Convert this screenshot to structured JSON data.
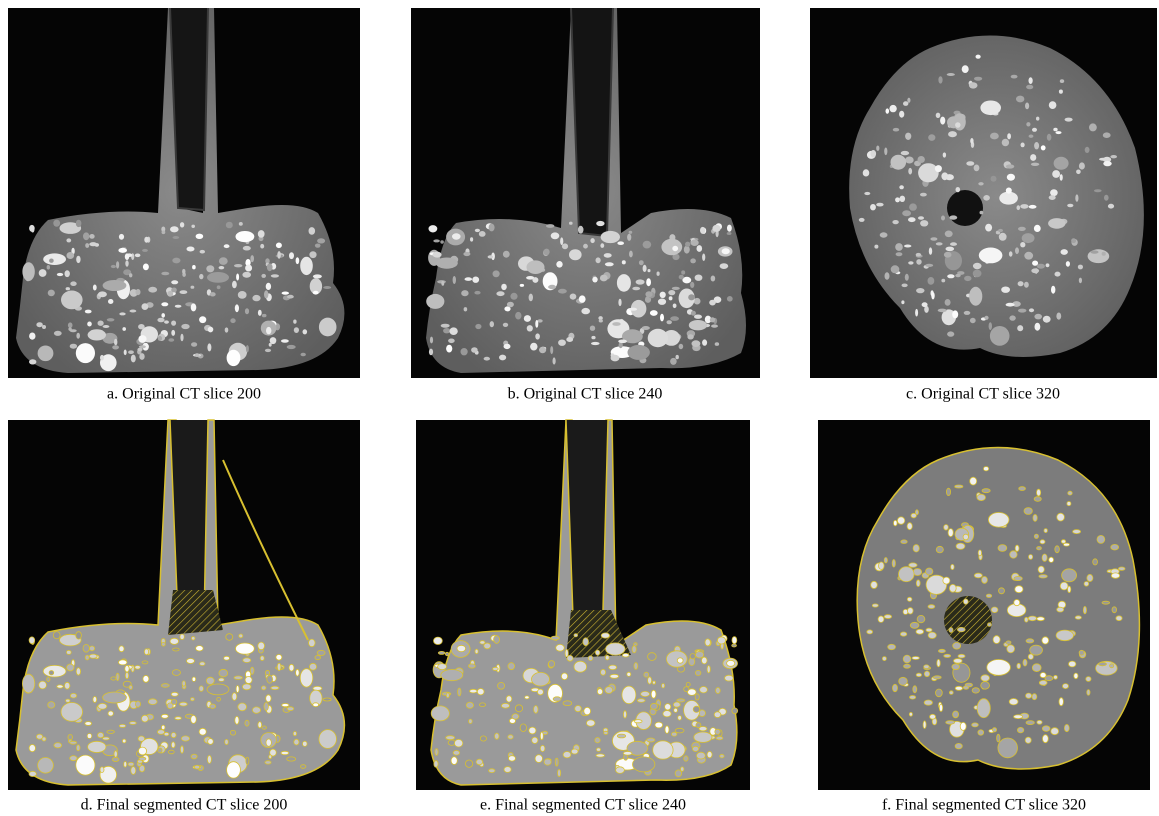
{
  "panels": [
    {
      "caption": "a. Original CT slice 200"
    },
    {
      "caption": "b. Original CT slice 240"
    },
    {
      "caption": "c. Original CT slice 320"
    },
    {
      "caption": "d. Final segmented CT slice 200"
    },
    {
      "caption": "e. Final segmented CT slice 240"
    },
    {
      "caption": "f. Final segmented CT slice 320"
    }
  ]
}
